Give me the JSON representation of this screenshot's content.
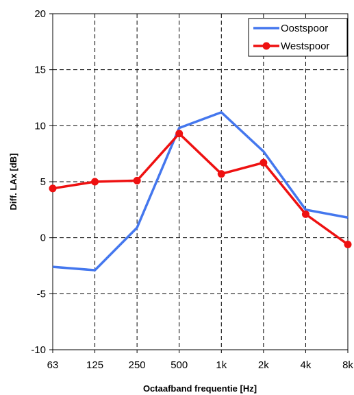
{
  "chart_data": {
    "type": "line",
    "categories": [
      "63",
      "125",
      "250",
      "500",
      "1k",
      "2k",
      "4k",
      "8k"
    ],
    "series": [
      {
        "name": "Oostspoor",
        "color": "#4477ee",
        "marker": "none",
        "values": [
          -2.6,
          -2.9,
          0.9,
          9.8,
          11.2,
          7.7,
          2.5,
          1.8
        ]
      },
      {
        "name": "Westspoor",
        "color": "#ee1111",
        "marker": "circle",
        "values": [
          4.4,
          5.0,
          5.1,
          9.3,
          5.7,
          6.7,
          2.1,
          -0.6
        ]
      }
    ],
    "xlabel": "Octaafband frequentie [Hz]",
    "ylabel": "Diff. LAx [dB]",
    "ylim": [
      -10,
      20
    ],
    "yticks": [
      -10,
      -5,
      0,
      5,
      10,
      15,
      20
    ],
    "grid": true,
    "grid_style": "dashed",
    "legend_position": "top-right"
  }
}
